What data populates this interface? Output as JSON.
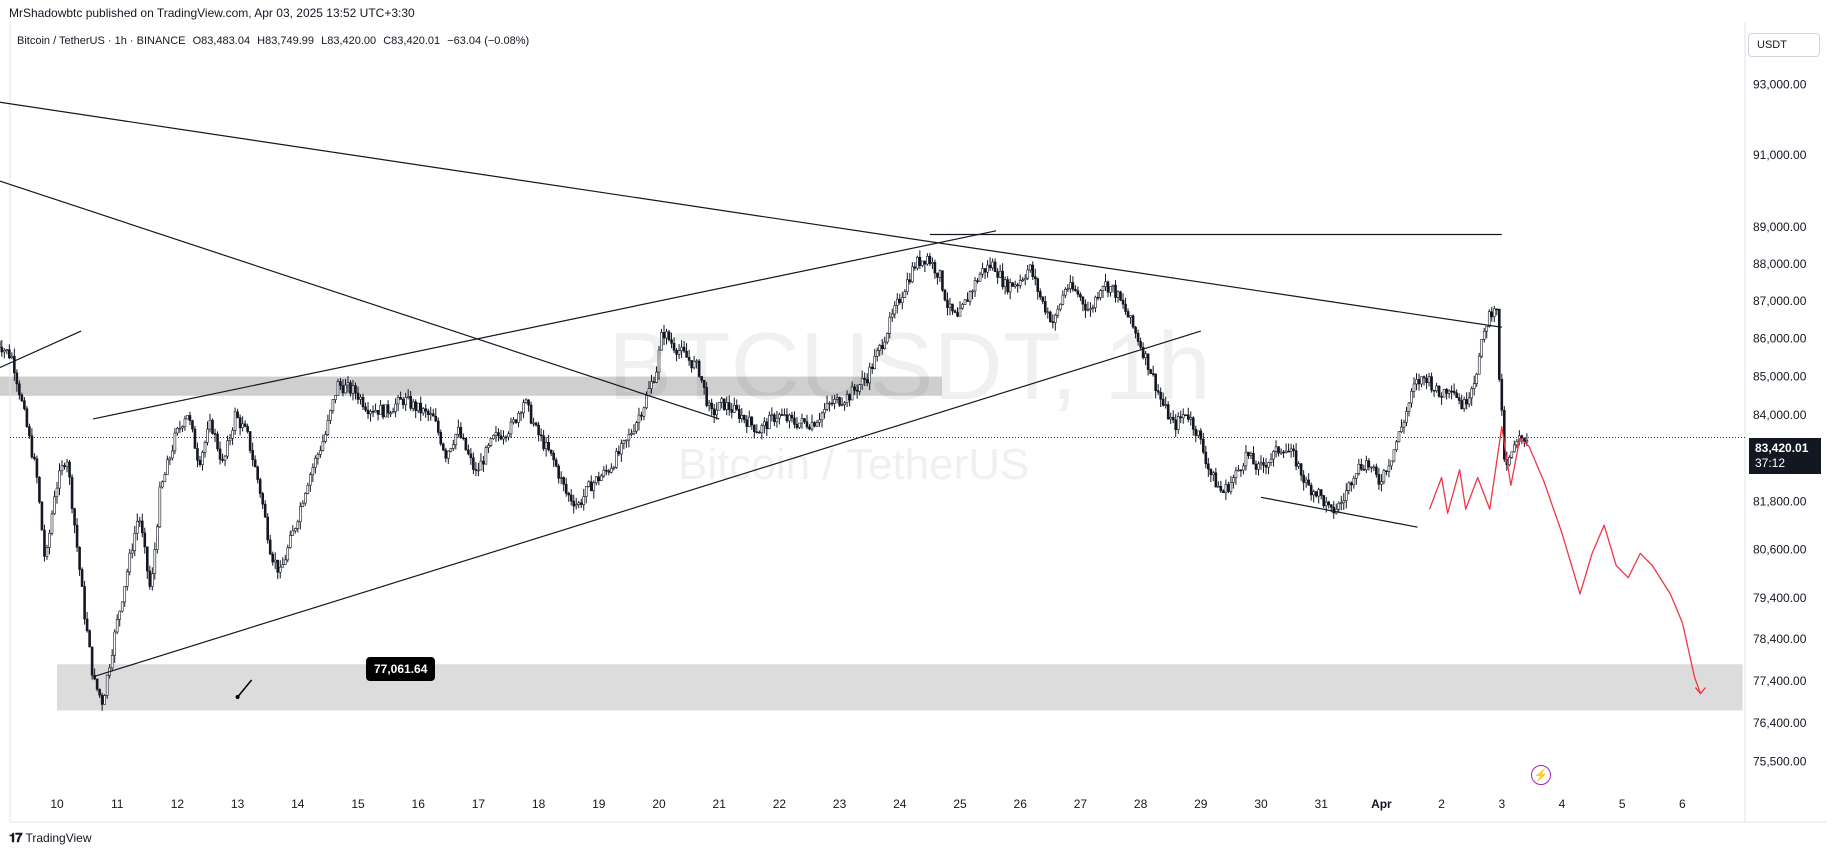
{
  "header": {
    "published": "MrShadowbtc published on TradingView.com, Apr 03, 2025 13:52 UTC+3:30",
    "symbol": "Bitcoin / TetherUS · 1h · BINANCE",
    "open": "O83,483.04",
    "high": "H83,749.99",
    "low": "L83,420.00",
    "close": "C83,420.01",
    "change": "−63.04 (−0.08%)"
  },
  "currency": "USDT",
  "watermark": {
    "symbol": "BTCUSDT, 1h",
    "name": "Bitcoin / TetherUS"
  },
  "last_price": {
    "value": "83,420.01",
    "countdown": "37:12"
  },
  "callout": "77,061.64",
  "footer_logo": "TradingView",
  "colors": {
    "candle": "#131722",
    "projection": "#f23645",
    "zone": "#cfcfcf",
    "zone_light": "#dcdcdc",
    "accent": "#9c27b0"
  },
  "chart_data": {
    "type": "candlestick",
    "ylim": [
      74800,
      94800
    ],
    "y_scale": "log",
    "x_ticks": [
      "10",
      "11",
      "12",
      "13",
      "14",
      "15",
      "16",
      "17",
      "18",
      "19",
      "20",
      "21",
      "22",
      "23",
      "24",
      "25",
      "26",
      "27",
      "28",
      "29",
      "30",
      "31",
      "Apr",
      "2",
      "3",
      "4",
      "5",
      "6"
    ],
    "y_ticks": [
      "93,000.00",
      "91,000.00",
      "89,000.00",
      "88,000.00",
      "87,000.00",
      "86,000.00",
      "85,000.00",
      "84,000.00",
      "81,800.00",
      "80,600.00",
      "79,400.00",
      "78,400.00",
      "77,400.00",
      "76,400.00",
      "75,500.00"
    ],
    "price_path": [
      [
        9.0,
        86000
      ],
      [
        9.3,
        85500
      ],
      [
        9.5,
        84000
      ],
      [
        9.7,
        82500
      ],
      [
        9.85,
        80200
      ],
      [
        10.0,
        82000
      ],
      [
        10.2,
        83000
      ],
      [
        10.35,
        81000
      ],
      [
        10.5,
        79000
      ],
      [
        10.65,
        77400
      ],
      [
        10.8,
        76900
      ],
      [
        11.0,
        78500
      ],
      [
        11.2,
        80000
      ],
      [
        11.4,
        81500
      ],
      [
        11.6,
        79500
      ],
      [
        11.75,
        82000
      ],
      [
        12.0,
        83400
      ],
      [
        12.2,
        84100
      ],
      [
        12.4,
        82800
      ],
      [
        12.6,
        83800
      ],
      [
        12.8,
        82700
      ],
      [
        13.0,
        84000
      ],
      [
        13.2,
        83500
      ],
      [
        13.4,
        82200
      ],
      [
        13.6,
        80500
      ],
      [
        13.75,
        80000
      ],
      [
        14.0,
        81200
      ],
      [
        14.2,
        82300
      ],
      [
        14.5,
        83500
      ],
      [
        14.7,
        84800
      ],
      [
        15.0,
        84600
      ],
      [
        15.2,
        84200
      ],
      [
        15.5,
        84100
      ],
      [
        15.8,
        84400
      ],
      [
        16.0,
        84200
      ],
      [
        16.3,
        83900
      ],
      [
        16.5,
        83000
      ],
      [
        16.7,
        83600
      ],
      [
        17.0,
        82500
      ],
      [
        17.3,
        83400
      ],
      [
        17.6,
        83700
      ],
      [
        17.8,
        84400
      ],
      [
        18.0,
        83600
      ],
      [
        18.3,
        82800
      ],
      [
        18.5,
        82000
      ],
      [
        18.7,
        81700
      ],
      [
        18.9,
        82200
      ],
      [
        19.2,
        82600
      ],
      [
        19.5,
        83300
      ],
      [
        19.8,
        84300
      ],
      [
        20.0,
        85200
      ],
      [
        20.1,
        86200
      ],
      [
        20.3,
        85800
      ],
      [
        20.5,
        85500
      ],
      [
        20.7,
        85200
      ],
      [
        20.9,
        84000
      ],
      [
        21.1,
        84300
      ],
      [
        21.4,
        84000
      ],
      [
        21.7,
        83600
      ],
      [
        22.0,
        84000
      ],
      [
        22.3,
        83800
      ],
      [
        22.6,
        83800
      ],
      [
        22.9,
        84300
      ],
      [
        23.2,
        84500
      ],
      [
        23.5,
        85000
      ],
      [
        23.7,
        85700
      ],
      [
        23.9,
        86500
      ],
      [
        24.1,
        87300
      ],
      [
        24.3,
        88000
      ],
      [
        24.5,
        88200
      ],
      [
        24.7,
        87700
      ],
      [
        24.85,
        86800
      ],
      [
        25.0,
        86500
      ],
      [
        25.2,
        87200
      ],
      [
        25.4,
        87800
      ],
      [
        25.6,
        88000
      ],
      [
        25.8,
        87400
      ],
      [
        26.0,
        87500
      ],
      [
        26.2,
        87900
      ],
      [
        26.4,
        87000
      ],
      [
        26.6,
        86400
      ],
      [
        26.8,
        87400
      ],
      [
        27.0,
        87200
      ],
      [
        27.2,
        86700
      ],
      [
        27.4,
        87500
      ],
      [
        27.6,
        87300
      ],
      [
        27.8,
        86700
      ],
      [
        28.0,
        86000
      ],
      [
        28.2,
        85200
      ],
      [
        28.4,
        84300
      ],
      [
        28.6,
        83700
      ],
      [
        28.8,
        84100
      ],
      [
        29.0,
        83500
      ],
      [
        29.2,
        82500
      ],
      [
        29.4,
        82000
      ],
      [
        29.6,
        82400
      ],
      [
        29.8,
        83000
      ],
      [
        30.0,
        82600
      ],
      [
        30.2,
        82900
      ],
      [
        30.4,
        83200
      ],
      [
        30.6,
        82900
      ],
      [
        30.8,
        82200
      ],
      [
        31.0,
        82000
      ],
      [
        31.2,
        81500
      ],
      [
        31.4,
        81800
      ],
      [
        31.6,
        82600
      ],
      [
        31.8,
        82800
      ],
      [
        32.0,
        82300
      ],
      [
        32.2,
        82900
      ],
      [
        32.4,
        83800
      ],
      [
        32.6,
        84800
      ],
      [
        32.8,
        85000
      ],
      [
        33.0,
        84500
      ],
      [
        33.2,
        84800
      ],
      [
        33.4,
        84200
      ],
      [
        33.6,
        85000
      ],
      [
        33.8,
        86500
      ],
      [
        33.95,
        87000
      ],
      [
        34.0,
        85000
      ],
      [
        34.1,
        82500
      ],
      [
        34.2,
        83000
      ],
      [
        34.35,
        83400
      ],
      [
        34.45,
        83420
      ]
    ],
    "trendlines": [
      {
        "from": [
          9.0,
          92500
        ],
        "to": [
          34.0,
          86300
        ]
      },
      {
        "from": [
          9.0,
          90300
        ],
        "to": [
          21.0,
          83900
        ]
      },
      {
        "from": [
          10.6,
          83900
        ],
        "to": [
          25.6,
          88900
        ]
      },
      {
        "from": [
          10.6,
          77500
        ],
        "to": [
          29.0,
          86200
        ]
      },
      {
        "from": [
          24.5,
          88800
        ],
        "to": [
          34.0,
          88800
        ]
      },
      {
        "from": [
          30.0,
          81900
        ],
        "to": [
          32.6,
          81150
        ]
      },
      {
        "from": [
          9.0,
          85200
        ],
        "to": [
          10.4,
          86200
        ]
      }
    ],
    "zones": [
      {
        "y": [
          84500,
          85000
        ],
        "x": [
          9.0,
          24.7
        ]
      },
      {
        "y": [
          76700,
          77800
        ],
        "x": [
          10.0,
          38.0
        ]
      }
    ],
    "projection": [
      [
        32.8,
        81600
      ],
      [
        33.0,
        82400
      ],
      [
        33.1,
        81500
      ],
      [
        33.3,
        82600
      ],
      [
        33.4,
        81600
      ],
      [
        33.6,
        82400
      ],
      [
        33.8,
        81600
      ],
      [
        34.0,
        83700
      ],
      [
        34.15,
        82200
      ],
      [
        34.3,
        83400
      ],
      [
        34.45,
        83200
      ],
      [
        34.7,
        82300
      ],
      [
        35.0,
        81000
      ],
      [
        35.3,
        79500
      ],
      [
        35.5,
        80500
      ],
      [
        35.7,
        81200
      ],
      [
        35.9,
        80200
      ],
      [
        36.1,
        79900
      ],
      [
        36.3,
        80500
      ],
      [
        36.5,
        80200
      ],
      [
        36.8,
        79500
      ],
      [
        37.0,
        78800
      ],
      [
        37.2,
        77500
      ],
      [
        37.3,
        77100
      ]
    ],
    "callout_point": [
      13.0,
      77061.64
    ],
    "last_price_value": 83420.01
  }
}
